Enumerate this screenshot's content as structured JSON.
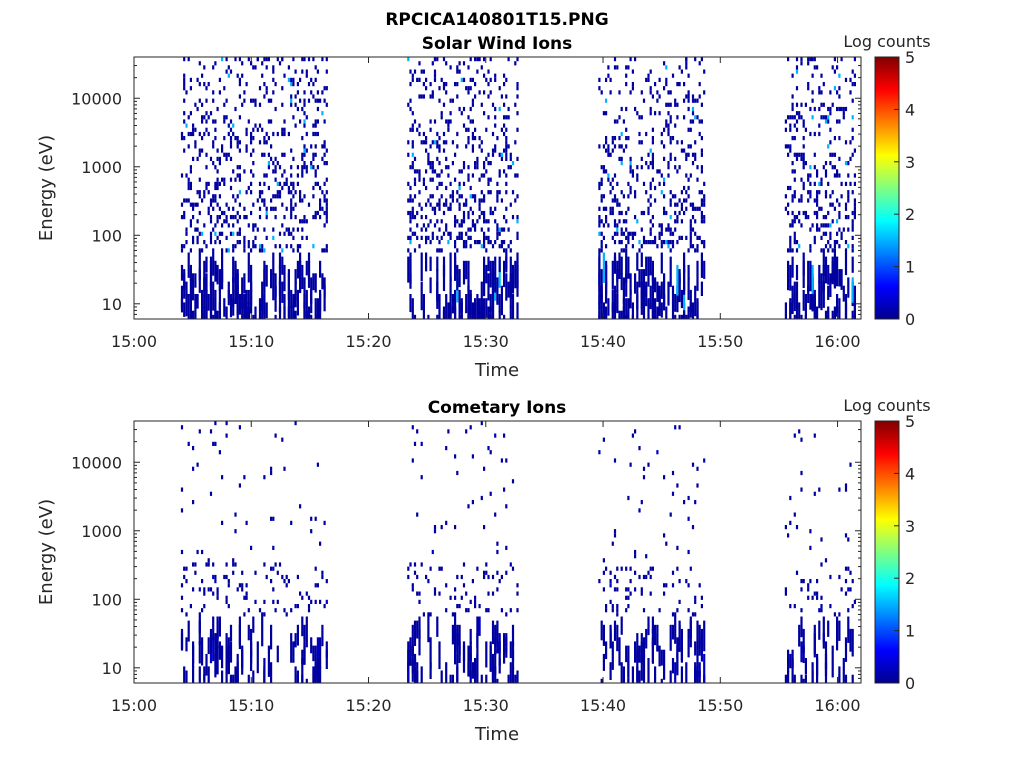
{
  "figure_title": "RPCICA140801T15.PNG",
  "colors": {
    "scale_low": "#00008f",
    "scale_high": "#800000",
    "axis": "#262626"
  },
  "chart_data": [
    {
      "type": "heatmap",
      "title": "Solar Wind Ions",
      "xlabel": "Time",
      "ylabel": "Energy (eV)",
      "xticks": [
        "15:00",
        "15:10",
        "15:20",
        "15:30",
        "15:40",
        "15:50",
        "16:00"
      ],
      "xlim": [
        "15:00",
        "16:02"
      ],
      "yticks": [
        "10",
        "100",
        "1000",
        "10000"
      ],
      "ylim": [
        6,
        40000
      ],
      "yscale": "log",
      "colorbar": {
        "label": "Log counts",
        "range": [
          0,
          5
        ],
        "ticks": [
          "0",
          "1",
          "2",
          "3",
          "4",
          "5"
        ],
        "colormap": "jet"
      },
      "active_intervals": [
        [
          "15:04",
          "15:16.5"
        ],
        [
          "15:23.3",
          "15:32.8"
        ],
        [
          "15:39.6",
          "15:48.6"
        ],
        [
          "15:55.5",
          "16:01.5"
        ]
      ],
      "typical_log_counts": 0.1,
      "max_log_counts": 1.5
    },
    {
      "type": "heatmap",
      "title": "Cometary Ions",
      "xlabel": "Time",
      "ylabel": "Energy (eV)",
      "xticks": [
        "15:00",
        "15:10",
        "15:20",
        "15:30",
        "15:40",
        "15:50",
        "16:00"
      ],
      "xlim": [
        "15:00",
        "16:02"
      ],
      "yticks": [
        "10",
        "100",
        "1000",
        "10000"
      ],
      "ylim": [
        6,
        40000
      ],
      "yscale": "log",
      "colorbar": {
        "label": "Log counts",
        "range": [
          0,
          5
        ],
        "ticks": [
          "0",
          "1",
          "2",
          "3",
          "4",
          "5"
        ],
        "colormap": "jet"
      },
      "active_intervals": [
        [
          "15:04",
          "15:16.5"
        ],
        [
          "15:23.3",
          "15:32.8"
        ],
        [
          "15:39.6",
          "15:48.6"
        ],
        [
          "15:55.5",
          "16:01.5"
        ]
      ],
      "typical_log_counts": 0.1,
      "max_log_counts": 0.3
    }
  ]
}
